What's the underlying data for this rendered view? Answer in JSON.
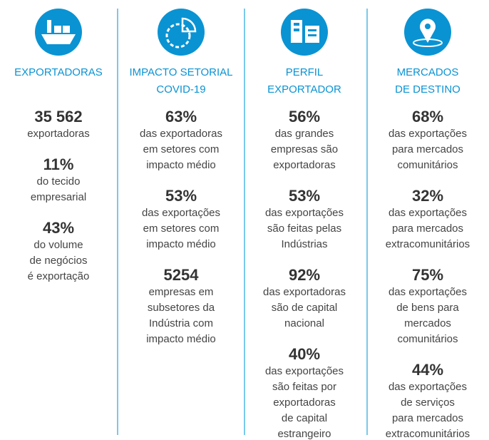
{
  "columns": [
    {
      "title": [
        "EXPORTADORAS"
      ],
      "stats": [
        {
          "value": "35 562",
          "lines": [
            "exportadoras"
          ]
        },
        {
          "value": "11%",
          "lines": [
            "do tecido",
            "empresarial"
          ]
        },
        {
          "value": "43%",
          "lines": [
            "do volume",
            "de negócios",
            "é exportação"
          ]
        }
      ]
    },
    {
      "title": [
        "IMPACTO SETORIAL",
        "COVID-19"
      ],
      "stats": [
        {
          "value": "63%",
          "lines": [
            "das exportadoras",
            "em setores com",
            "impacto médio"
          ]
        },
        {
          "value": "53%",
          "lines": [
            "das exportações",
            "em setores com",
            "impacto médio"
          ]
        },
        {
          "value": "5254",
          "lines": [
            "empresas em",
            "subsetores da",
            "Indústria com",
            "impacto médio"
          ]
        }
      ]
    },
    {
      "title": [
        "PERFIL",
        "EXPORTADOR"
      ],
      "stats": [
        {
          "value": "56%",
          "lines": [
            "das grandes",
            "empresas são",
            "exportadoras"
          ]
        },
        {
          "value": "53%",
          "lines": [
            "das exportações",
            "são feitas pelas",
            "Indústrias"
          ]
        },
        {
          "value": "92%",
          "lines": [
            "das exportadoras",
            "são de capital",
            "nacional"
          ]
        },
        {
          "value": "40%",
          "lines": [
            "das exportações",
            "são feitas por",
            "exportadoras",
            "de capital",
            "estrangeiro"
          ]
        }
      ]
    },
    {
      "title": [
        "MERCADOS",
        "DE DESTINO"
      ],
      "stats": [
        {
          "value": "68%",
          "lines": [
            "das exportações",
            "para mercados",
            "comunitários"
          ]
        },
        {
          "value": "32%",
          "lines": [
            "das exportações",
            "para mercados",
            "extracomunitários"
          ]
        },
        {
          "value": "75%",
          "lines": [
            "das exportações",
            "de bens para",
            "mercados",
            "comunitários"
          ]
        },
        {
          "value": "44%",
          "lines": [
            "das exportações",
            "de serviços",
            "para mercados",
            "extracomunitários"
          ]
        }
      ]
    }
  ]
}
